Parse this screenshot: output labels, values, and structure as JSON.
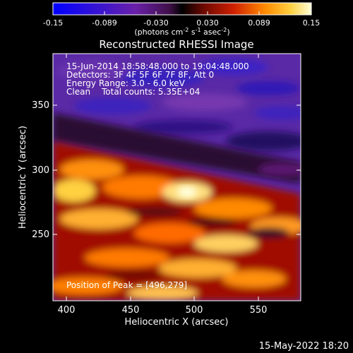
{
  "colorbar": {
    "ticks": [
      "-0.15",
      "-0.089",
      "-0.030",
      "0.030",
      "0.089",
      "0.15"
    ],
    "units_main": "(photons cm",
    "units_exp1": "-2",
    "units_mid": " s",
    "units_exp2": "-1",
    "units_end": " asec",
    "units_exp3": "-2",
    "units_close": ")"
  },
  "title": "Reconstructed RHESSI Image",
  "info": {
    "line1": "15-Jun-2014 18:58:48.000 to 19:04:48.000",
    "line2": "Detectors: 3F 4F 5F 6F 7F 8F, Att 0",
    "line3": "Energy Range: 3.0 - 6.0 keV",
    "line4a": "Clean",
    "line4b": "Total counts: 5.35E+04",
    "peak": "Position of Peak = [496,279]"
  },
  "x_axis": {
    "label": "Heliocentric X (arcsec)",
    "ticks": [
      "400",
      "450",
      "500",
      "550"
    ],
    "range": [
      388,
      580
    ]
  },
  "y_axis": {
    "label": "Heliocentric Y (arcsec)",
    "ticks": [
      "250",
      "300",
      "350"
    ],
    "range": [
      198,
      398
    ]
  },
  "timestamp": "15-May-2022 18:20"
}
